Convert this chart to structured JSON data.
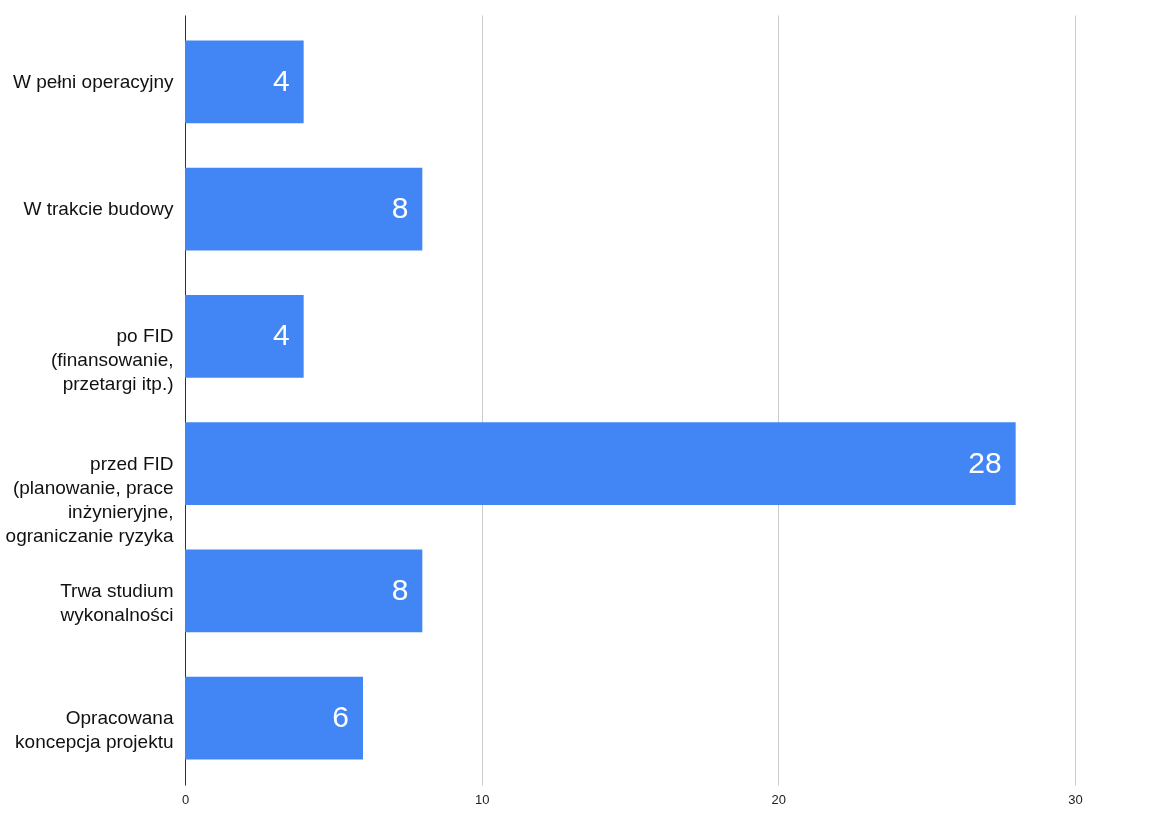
{
  "chart_data": {
    "type": "bar",
    "orientation": "horizontal",
    "categories": [
      "W pełni operacyjny",
      "W trakcie budowy",
      "po FID\n(finansowanie,\nprzetargi itp.)",
      "przed FID\n(planowanie, prace\ninżynieryjne,\nograniczanie ryzyka",
      "Trwa studium\nwykonalności",
      "Opracowana\nkoncepcja projektu"
    ],
    "values": [
      4,
      8,
      4,
      28,
      8,
      6
    ],
    "color": "#4285f4",
    "xlim": [
      0,
      30
    ],
    "xticks": [
      0,
      10,
      20,
      30
    ],
    "grid": "x",
    "data_labels": true
  }
}
